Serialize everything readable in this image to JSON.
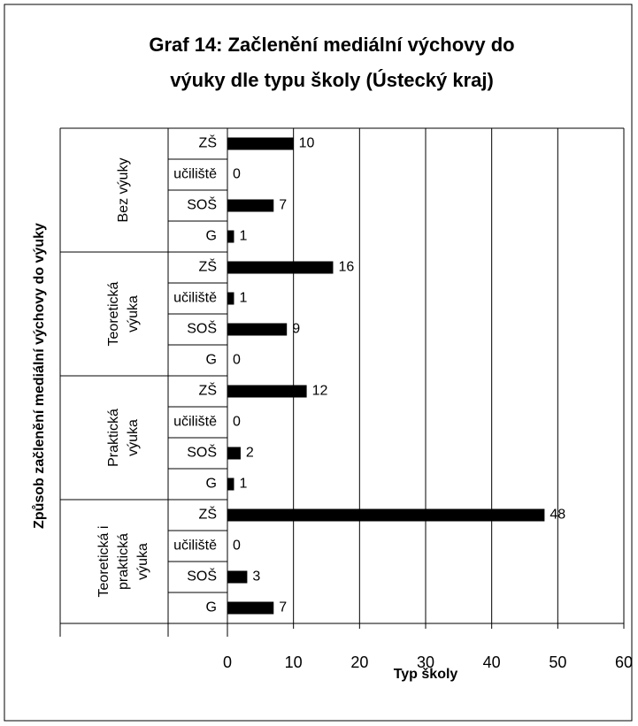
{
  "chart_data": {
    "type": "bar",
    "orientation": "horizontal",
    "title": [
      "Graf 14: Začlenění mediální výchovy do",
      "výuky dle typu školy (Ústecký kraj)"
    ],
    "y_label": "Způsob začlenění mediální výchovy do výuky",
    "x_label": "Typ školy",
    "color": "#000000",
    "grid": true,
    "xlim": [
      0,
      60
    ],
    "xticks": [
      0,
      10,
      20,
      30,
      40,
      50,
      60
    ],
    "groups": [
      {
        "name": [
          "Bez výuky"
        ],
        "categories": [
          "ZŠ",
          "učiliště",
          "SOŠ",
          "G"
        ],
        "values": [
          10,
          0,
          7,
          1
        ]
      },
      {
        "name": [
          "Teoretická",
          "výuka"
        ],
        "categories": [
          "ZŠ",
          "učiliště",
          "SOŠ",
          "G"
        ],
        "values": [
          16,
          1,
          9,
          0
        ]
      },
      {
        "name": [
          "Praktická",
          "výuka"
        ],
        "categories": [
          "ZŠ",
          "učiliště",
          "SOŠ",
          "G"
        ],
        "values": [
          12,
          0,
          2,
          1
        ]
      },
      {
        "name": [
          "Teoretická i",
          "praktická",
          "výuka"
        ],
        "categories": [
          "ZŠ",
          "učiliště",
          "SOŠ",
          "G"
        ],
        "values": [
          48,
          0,
          3,
          7
        ]
      }
    ]
  }
}
